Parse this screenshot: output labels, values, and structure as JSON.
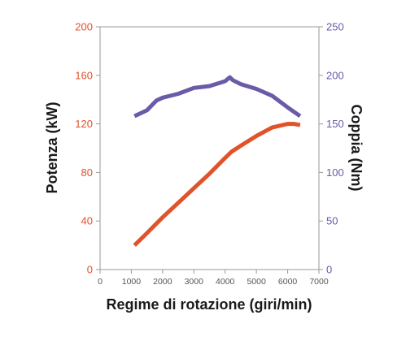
{
  "chart_data": {
    "type": "line",
    "xlabel": "Regime di rotazione (giri/min)",
    "ylabel_left": "Potenza (kW)",
    "ylabel_right": "Coppia (Nm)",
    "xlim": [
      0,
      7000
    ],
    "ylim_left": [
      0,
      200
    ],
    "ylim_right": [
      0,
      250
    ],
    "x_ticks": [
      "0",
      "1000",
      "2000",
      "3000",
      "4000",
      "5000",
      "6000",
      "7000"
    ],
    "y_left_ticks": [
      "0",
      "40",
      "80",
      "120",
      "160",
      "200"
    ],
    "y_right_ticks": [
      "0",
      "50",
      "100",
      "150",
      "200",
      "250"
    ],
    "grid": false,
    "colors": {
      "left_axis": "#e0522a",
      "right_axis": "#6a5aa8",
      "power_line": "#e0522a",
      "torque_line": "#6a5aa8"
    },
    "series": [
      {
        "axis": "left",
        "x": [
          1100,
          1500,
          2000,
          2500,
          3000,
          3500,
          4000,
          4200,
          4500,
          5000,
          5500,
          6000,
          6200,
          6400
        ],
        "values": [
          20,
          30,
          43,
          55,
          67,
          79,
          92,
          97,
          102,
          110,
          117,
          120,
          120,
          119
        ]
      },
      {
        "axis": "right",
        "x": [
          1100,
          1500,
          1800,
          2000,
          2500,
          3000,
          3500,
          4000,
          4150,
          4250,
          4500,
          5000,
          5500,
          6000,
          6400
        ],
        "values": [
          158,
          164,
          174,
          177,
          181,
          187,
          189,
          194,
          198,
          195,
          191,
          186,
          179,
          167,
          158
        ]
      }
    ]
  }
}
